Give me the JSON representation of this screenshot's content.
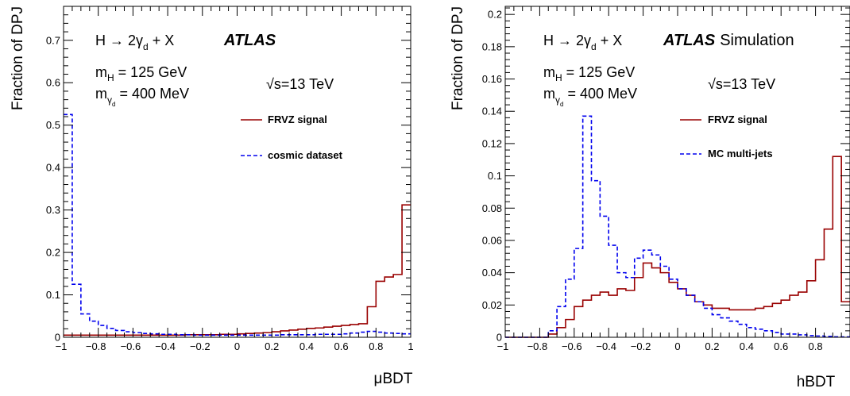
{
  "chart_data": [
    {
      "type": "line",
      "style": "step-histogram",
      "ylabel": "Fraction of DPJ",
      "xlabel": "μBDT",
      "xlim": [
        -1,
        1
      ],
      "ylim": [
        0,
        0.78
      ],
      "xticks": [
        -1,
        -0.8,
        -0.6,
        -0.4,
        -0.2,
        0,
        0.2,
        0.4,
        0.6,
        0.8,
        1
      ],
      "xtick_labels": [
        "−1",
        "−0.8",
        "−0.6",
        "−0.4",
        "−0.2",
        "0",
        "0.2",
        "0.4",
        "0.6",
        "0.8",
        "1"
      ],
      "yticks": [
        0,
        0.1,
        0.2,
        0.3,
        0.4,
        0.5,
        0.6,
        0.7
      ],
      "ytick_labels": [
        "0",
        "0.1",
        "0.2",
        "0.3",
        "0.4",
        "0.5",
        "0.6",
        "0.7"
      ],
      "grid": false,
      "legend_position": "top-right",
      "annotations": {
        "process": "H → 2γ",
        "process_sub": "d",
        "process_tail": " + X",
        "atlas": "ATLAS",
        "atlas_extra": "",
        "mass_h_main": "m",
        "mass_h_sub": "H",
        "mass_h_val": " = 125 GeV",
        "mass_gd_main": "m",
        "mass_gd_sub": "γ",
        "mass_gd_subsub": "d",
        "mass_gd_val": " = 400 MeV",
        "energy": "√s=13 TeV"
      },
      "bin_edges": [
        -1,
        -0.95,
        -0.9,
        -0.85,
        -0.8,
        -0.75,
        -0.7,
        -0.65,
        -0.6,
        -0.55,
        -0.5,
        -0.45,
        -0.4,
        -0.35,
        -0.3,
        -0.25,
        -0.2,
        -0.15,
        -0.1,
        -0.05,
        0,
        0.05,
        0.1,
        0.15,
        0.2,
        0.25,
        0.3,
        0.35,
        0.4,
        0.45,
        0.5,
        0.55,
        0.6,
        0.65,
        0.7,
        0.75,
        0.8,
        0.85,
        0.9,
        0.95,
        1
      ],
      "series": [
        {
          "name": "FRVZ signal",
          "color": "#990000",
          "dash": "solid",
          "values": [
            0.005,
            0.005,
            0.005,
            0.005,
            0.005,
            0.005,
            0.005,
            0.005,
            0.005,
            0.005,
            0.005,
            0.005,
            0.005,
            0.005,
            0.006,
            0.006,
            0.006,
            0.006,
            0.007,
            0.007,
            0.008,
            0.009,
            0.01,
            0.011,
            0.013,
            0.015,
            0.017,
            0.019,
            0.021,
            0.022,
            0.024,
            0.026,
            0.028,
            0.03,
            0.032,
            0.072,
            0.132,
            0.142,
            0.148,
            0.312
          ]
        },
        {
          "name": "cosmic dataset",
          "color": "#0000ee",
          "dash": "dashed",
          "values": [
            0.525,
            0.125,
            0.055,
            0.038,
            0.028,
            0.021,
            0.016,
            0.013,
            0.011,
            0.009,
            0.008,
            0.007,
            0.007,
            0.006,
            0.006,
            0.005,
            0.005,
            0.005,
            0.005,
            0.005,
            0.005,
            0.005,
            0.005,
            0.005,
            0.005,
            0.006,
            0.006,
            0.006,
            0.006,
            0.007,
            0.007,
            0.007,
            0.008,
            0.01,
            0.012,
            0.014,
            0.012,
            0.01,
            0.009,
            0.008
          ]
        }
      ]
    },
    {
      "type": "line",
      "style": "step-histogram",
      "ylabel": "Fraction of DPJ",
      "xlabel": "hBDT",
      "xlim": [
        -1,
        1
      ],
      "ylim": [
        0,
        0.205
      ],
      "xticks": [
        -1,
        -0.8,
        -0.6,
        -0.4,
        -0.2,
        0,
        0.2,
        0.4,
        0.6,
        0.8
      ],
      "xtick_labels": [
        "−1",
        "−0.8",
        "−0.6",
        "−0.4",
        "−0.2",
        "0",
        "0.2",
        "0.4",
        "0.6",
        "0.8"
      ],
      "yticks": [
        0,
        0.02,
        0.04,
        0.06,
        0.08,
        0.1,
        0.12,
        0.14,
        0.16,
        0.18,
        0.2
      ],
      "ytick_labels": [
        "0",
        "0.02",
        "0.04",
        "0.06",
        "0.08",
        "0.1",
        "0.12",
        "0.14",
        "0.16",
        "0.18",
        "0.2"
      ],
      "grid": false,
      "legend_position": "top-right",
      "annotations": {
        "process": "H → 2γ",
        "process_sub": "d",
        "process_tail": " + X",
        "atlas": "ATLAS",
        "atlas_extra": "Simulation",
        "mass_h_main": "m",
        "mass_h_sub": "H",
        "mass_h_val": " = 125 GeV",
        "mass_gd_main": "m",
        "mass_gd_sub": "γ",
        "mass_gd_subsub": "d",
        "mass_gd_val": " = 400 MeV",
        "energy": "√s=13 TeV"
      },
      "bin_edges": [
        -1,
        -0.95,
        -0.9,
        -0.85,
        -0.8,
        -0.75,
        -0.7,
        -0.65,
        -0.6,
        -0.55,
        -0.5,
        -0.45,
        -0.4,
        -0.35,
        -0.3,
        -0.25,
        -0.2,
        -0.15,
        -0.1,
        -0.05,
        0,
        0.05,
        0.1,
        0.15,
        0.2,
        0.25,
        0.3,
        0.35,
        0.4,
        0.45,
        0.5,
        0.55,
        0.6,
        0.65,
        0.7,
        0.75,
        0.8,
        0.85,
        0.9,
        0.95,
        1
      ],
      "series": [
        {
          "name": "FRVZ signal",
          "color": "#990000",
          "dash": "solid",
          "values": [
            0,
            0,
            0,
            0,
            0,
            0.002,
            0.006,
            0.011,
            0.019,
            0.023,
            0.026,
            0.028,
            0.026,
            0.03,
            0.029,
            0.037,
            0.046,
            0.043,
            0.04,
            0.034,
            0.03,
            0.026,
            0.022,
            0.02,
            0.018,
            0.018,
            0.017,
            0.017,
            0.017,
            0.018,
            0.019,
            0.021,
            0.023,
            0.026,
            0.028,
            0.035,
            0.048,
            0.067,
            0.112,
            0.022
          ]
        },
        {
          "name": "MC multi-jets",
          "color": "#0000ee",
          "dash": "dashed",
          "values": [
            0,
            0,
            0,
            0,
            0,
            0.004,
            0.019,
            0.036,
            0.055,
            0.137,
            0.097,
            0.075,
            0.057,
            0.04,
            0.037,
            0.049,
            0.054,
            0.051,
            0.044,
            0.036,
            0.03,
            0.026,
            0.022,
            0.018,
            0.014,
            0.012,
            0.01,
            0.008,
            0.006,
            0.005,
            0.004,
            0.003,
            0.002,
            0.002,
            0.0015,
            0.001,
            0.0008,
            0.0005,
            0.0003,
            0.0002
          ]
        }
      ]
    }
  ]
}
